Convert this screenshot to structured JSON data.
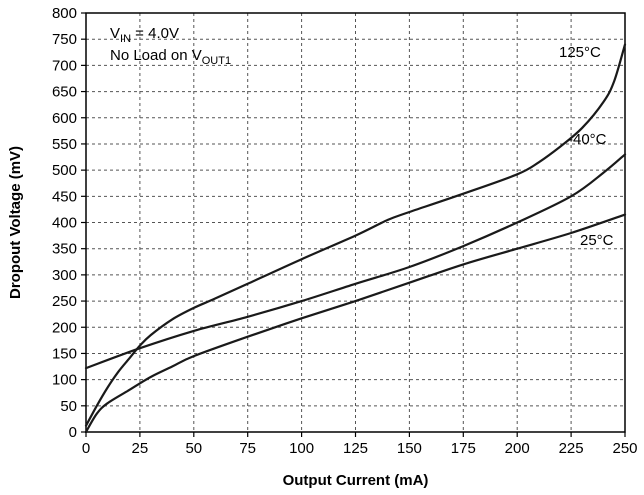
{
  "chart_data": {
    "type": "line",
    "xlabel": "Output Current (mA)",
    "ylabel": "Dropout Voltage (mV)",
    "xlim": [
      0,
      250
    ],
    "ylim": [
      0,
      800
    ],
    "xticks": [
      "0",
      "25",
      "50",
      "75",
      "100",
      "125",
      "150",
      "175",
      "200",
      "225",
      "250"
    ],
    "yticks": [
      "0",
      "50",
      "100",
      "150",
      "200",
      "250",
      "300",
      "350",
      "400",
      "450",
      "500",
      "550",
      "600",
      "650",
      "700",
      "750",
      "800"
    ],
    "grid": true,
    "annotation": {
      "vin_prefix": "V",
      "vin_sub": "IN",
      "vin_value": " = 4.0V",
      "load_prefix": "No Load on V",
      "load_sub": "OUT1"
    },
    "series": [
      {
        "name": "125°C",
        "x": [
          0,
          5,
          10,
          15,
          20,
          25,
          30,
          40,
          50,
          60,
          75,
          100,
          125,
          140,
          150,
          175,
          200,
          210,
          220,
          230,
          240,
          245,
          250
        ],
        "y": [
          12,
          50,
          85,
          115,
          140,
          165,
          185,
          215,
          237,
          255,
          283,
          330,
          375,
          405,
          420,
          455,
          492,
          515,
          545,
          580,
          630,
          670,
          740
        ]
      },
      {
        "name": "-40°C",
        "x": [
          0,
          25,
          50,
          75,
          100,
          125,
          150,
          175,
          200,
          225,
          240,
          250
        ],
        "y": [
          122,
          160,
          193,
          220,
          250,
          283,
          315,
          355,
          400,
          450,
          495,
          530
        ]
      },
      {
        "name": "25°C",
        "x": [
          0,
          5,
          10,
          20,
          30,
          40,
          50,
          75,
          100,
          125,
          150,
          175,
          200,
          225,
          250
        ],
        "y": [
          0,
          35,
          55,
          80,
          105,
          125,
          145,
          182,
          217,
          250,
          285,
          320,
          350,
          380,
          415
        ]
      }
    ]
  }
}
